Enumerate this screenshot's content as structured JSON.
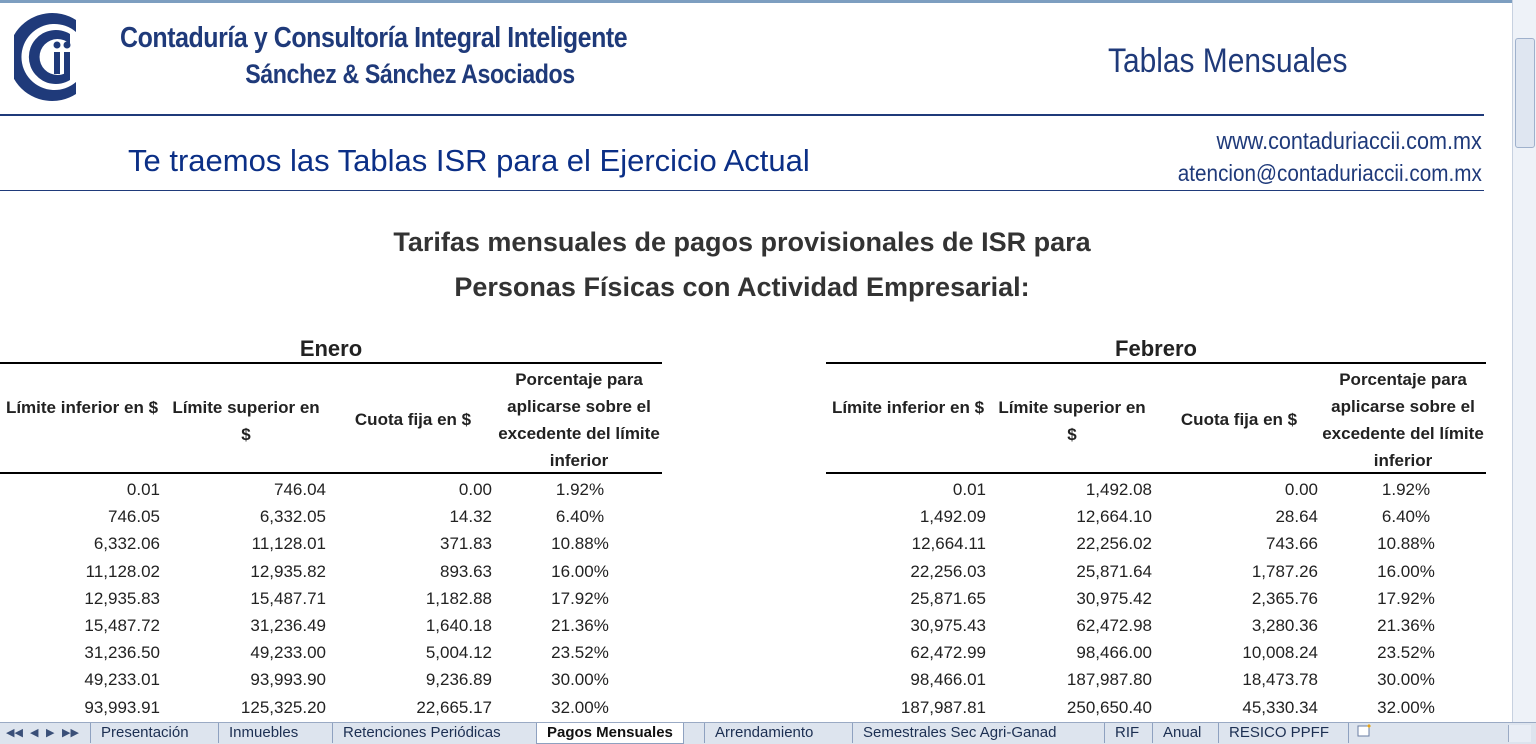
{
  "header": {
    "company_line1": "Contaduría y Consultoría Integral Inteligente",
    "company_line2": "Sánchez & Sánchez Asociados",
    "page_title": "Tablas Mensuales",
    "tagline": "Te traemos las Tablas ISR para el Ejercicio Actual",
    "website": "www.contaduriaccii.com.mx",
    "email": "atencion@contaduriaccii.com.mx",
    "brand_color": "#1f3a7a"
  },
  "titles": {
    "line1": "Tarifas mensuales de pagos provisionales de ISR para",
    "line2": "Personas Físicas con Actividad Empresarial:"
  },
  "columns": [
    "Límite inferior en $",
    "Límite superior en $",
    "Cuota fija en $",
    "Porcentaje para aplicarse sobre el excedente del límite inferior"
  ],
  "tables": [
    {
      "month": "Enero",
      "rows": [
        [
          "0.01",
          "746.04",
          "0.00",
          "1.92%"
        ],
        [
          "746.05",
          "6,332.05",
          "14.32",
          "6.40%"
        ],
        [
          "6,332.06",
          "11,128.01",
          "371.83",
          "10.88%"
        ],
        [
          "11,128.02",
          "12,935.82",
          "893.63",
          "16.00%"
        ],
        [
          "12,935.83",
          "15,487.71",
          "1,182.88",
          "17.92%"
        ],
        [
          "15,487.72",
          "31,236.49",
          "1,640.18",
          "21.36%"
        ],
        [
          "31,236.50",
          "49,233.00",
          "5,004.12",
          "23.52%"
        ],
        [
          "49,233.01",
          "93,993.90",
          "9,236.89",
          "30.00%"
        ],
        [
          "93,993.91",
          "125,325.20",
          "22,665.17",
          "32.00%"
        ]
      ]
    },
    {
      "month": "Febrero",
      "rows": [
        [
          "0.01",
          "1,492.08",
          "0.00",
          "1.92%"
        ],
        [
          "1,492.09",
          "12,664.10",
          "28.64",
          "6.40%"
        ],
        [
          "12,664.11",
          "22,256.02",
          "743.66",
          "10.88%"
        ],
        [
          "22,256.03",
          "25,871.64",
          "1,787.26",
          "16.00%"
        ],
        [
          "25,871.65",
          "30,975.42",
          "2,365.76",
          "17.92%"
        ],
        [
          "30,975.43",
          "62,472.98",
          "3,280.36",
          "21.36%"
        ],
        [
          "62,472.99",
          "98,466.00",
          "10,008.24",
          "23.52%"
        ],
        [
          "98,466.01",
          "187,987.80",
          "18,473.78",
          "30.00%"
        ],
        [
          "187,987.81",
          "250,650.40",
          "45,330.34",
          "32.00%"
        ]
      ]
    }
  ],
  "sheet_tabs": [
    {
      "label": "Presentación",
      "active": false
    },
    {
      "label": "Inmuebles",
      "active": false
    },
    {
      "label": "Retenciones Periódicas",
      "active": false
    },
    {
      "label": "Pagos Mensuales",
      "active": true
    },
    {
      "label": "Arrendamiento",
      "active": false
    },
    {
      "label": "Semestrales Sec Agri-Ganad",
      "active": false
    },
    {
      "label": "RIF",
      "active": false
    },
    {
      "label": "Anual",
      "active": false
    },
    {
      "label": "RESICO PPFF",
      "active": false
    }
  ],
  "tab_nav": {
    "first": "◀◀",
    "prev": "◀",
    "next": "▶",
    "last": "▶▶"
  }
}
